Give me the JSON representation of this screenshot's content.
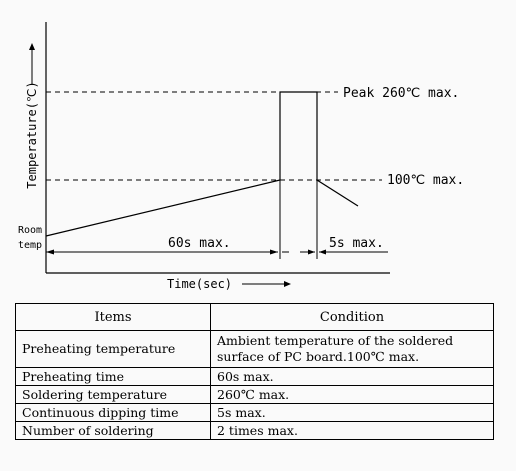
{
  "diagram": {
    "y_axis_label": "Temperature(℃)",
    "x_axis_label": "Time(sec)",
    "peak_label": "Peak 260℃ max.",
    "preheat_label": "100℃ max.",
    "room_temp_line1": "Room",
    "room_temp_line2": "temp",
    "preheat_time_label": "60s max.",
    "dip_time_label": "5s max."
  },
  "table": {
    "headers": [
      "Items",
      "Condition"
    ],
    "rows": [
      {
        "item": "Preheating temperature",
        "condition_line1": "Ambient temperature of the soldered",
        "condition_line2": "surface of  PC board.100℃ max."
      },
      {
        "item": "Preheating time",
        "condition": "60s max."
      },
      {
        "item": "Soldering temperature",
        "condition": "260℃ max."
      },
      {
        "item": "Continuous dipping time",
        "condition": "5s max."
      },
      {
        "item": "Number of soldering",
        "condition": "2 times max."
      }
    ]
  }
}
